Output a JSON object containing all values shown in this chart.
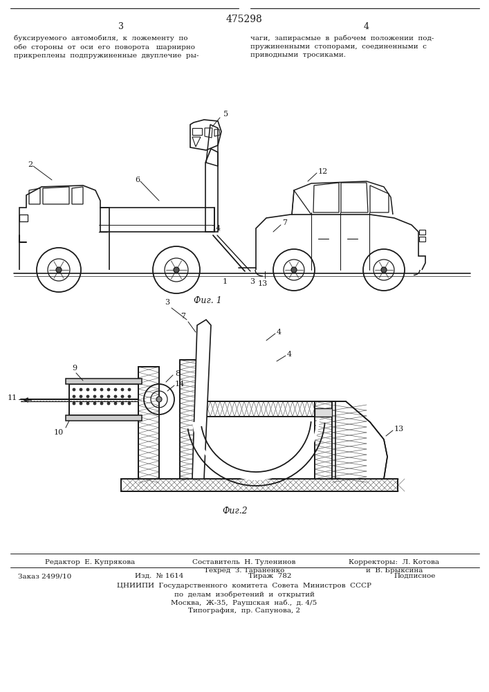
{
  "title": "475298",
  "page_number_left": "3",
  "page_number_right": "4",
  "text_left": "буксируемого  автомобиля,  к  ложементу  по\nобе  стороны  от  оси  его  поворота   шарнирно\nприкреплены  подпружиненные  двуплечие  ры-",
  "text_right": "чаги,  запирасмые  в  рабочем  положении  под-\nпружиненными  стопорами,  соединенными  с\nприводными  тросиками.",
  "fig1_caption": "Фиг. 1",
  "fig2_caption": "Фиг.2",
  "footer_editor": "Редактор  Е. Купрякова",
  "footer_compiler": "Составитель  Н. Туленинов",
  "footer_techred": "Техред  З. Тараненко",
  "footer_order": "Заказ 2499/10",
  "footer_izd": "Изд.  № 1614",
  "footer_tirazh": "Тираж  782",
  "footer_podpisnoe": "Подписное",
  "footer_cniiipi": "ЦНИИПИ  Государственного  комитета  Совета  Министров  СССР",
  "footer_cniiipi2": "по  делам  изобретений  и  открытий",
  "footer_moscow": "Москва,  Ж-35,  Раушская  наб.,  д. 4/5",
  "footer_typography": "Типография,  пр. Сапунова, 2",
  "bg_color": "#ffffff",
  "line_color": "#1a1a1a",
  "text_color": "#1a1a1a"
}
